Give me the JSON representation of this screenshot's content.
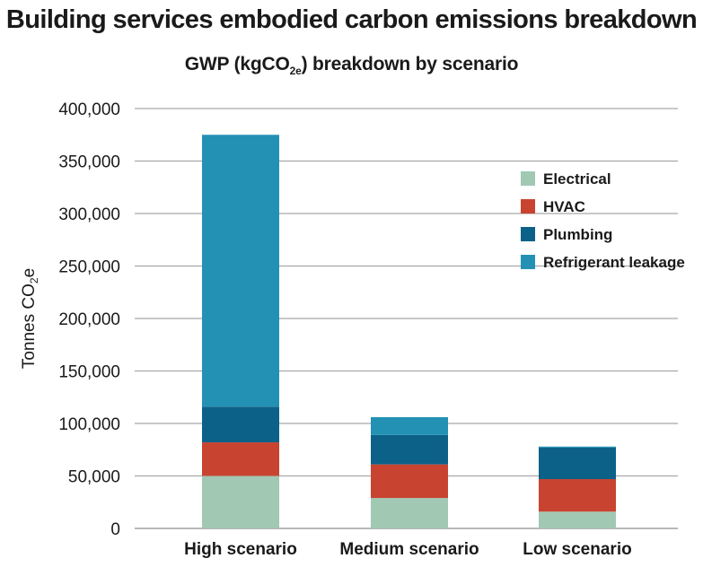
{
  "chart_data": {
    "type": "bar",
    "stacked": true,
    "title": "Building services embodied carbon emissions breakdown",
    "subtitle_main": "GWP (kgCO",
    "subtitle_sub": "2e",
    "subtitle_tail": ") breakdown by scenario",
    "ylabel_main": "Tonnes CO",
    "ylabel_sub": "2",
    "ylabel_tail": "e",
    "xlabel": "",
    "ylim": [
      0,
      400000
    ],
    "yticks": [
      0,
      50000,
      100000,
      150000,
      200000,
      250000,
      300000,
      350000,
      400000
    ],
    "ytick_labels": [
      "0",
      "50,000",
      "100,000",
      "150,000",
      "200,000",
      "250,000",
      "300,000",
      "350,000",
      "400,000"
    ],
    "categories": [
      "High scenario",
      "Medium scenario",
      "Low scenario"
    ],
    "series": [
      {
        "name": "Electrical",
        "color": "#a1c8b3",
        "values": [
          50000,
          29000,
          16000
        ]
      },
      {
        "name": "HVAC",
        "color": "#c84430",
        "values": [
          32000,
          32000,
          31000
        ]
      },
      {
        "name": "Plumbing",
        "color": "#0c6188",
        "values": [
          34000,
          28000,
          30000
        ]
      },
      {
        "name": "Refrigerant leakage",
        "color": "#2391b4",
        "values": [
          259000,
          17000,
          1000
        ]
      }
    ],
    "legend_position": "right",
    "grid": true
  }
}
